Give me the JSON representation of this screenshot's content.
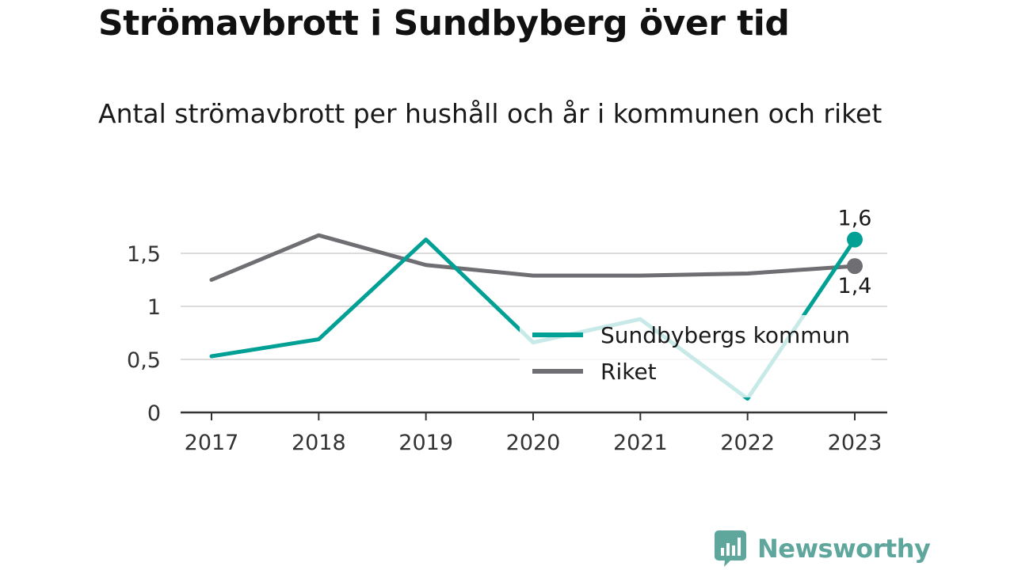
{
  "header": {
    "title": "Strömavbrott i Sundbyberg över tid",
    "subtitle": "Antal strömavbrott per hushåll och år i kommunen och riket"
  },
  "brand": {
    "name": "Newsworthy",
    "color": "#5fa69c",
    "icon": "bar-chart-bubble-icon"
  },
  "chart_data": {
    "type": "line",
    "title": "Strömavbrott i Sundbyberg över tid",
    "subtitle": "Antal strömavbrott per hushåll och år i kommunen och riket",
    "xlabel": "",
    "ylabel": "",
    "x": [
      "2017",
      "2018",
      "2019",
      "2020",
      "2021",
      "2022",
      "2023"
    ],
    "ylim": [
      0,
      1.75
    ],
    "yticks": [
      0,
      0.5,
      1,
      1.5
    ],
    "ytick_labels": [
      "0",
      "0,5",
      "1",
      "1,5"
    ],
    "grid": true,
    "legend_position": "center-right",
    "series": [
      {
        "name": "Sundbybergs kommun",
        "color": "#00a095",
        "values": [
          0.53,
          0.69,
          1.63,
          0.66,
          0.88,
          0.13,
          1.63
        ],
        "end_label": "1,6"
      },
      {
        "name": "Riket",
        "color": "#6e6e73",
        "values": [
          1.25,
          1.67,
          1.39,
          1.29,
          1.29,
          1.31,
          1.38
        ],
        "end_label": "1,4"
      }
    ]
  }
}
